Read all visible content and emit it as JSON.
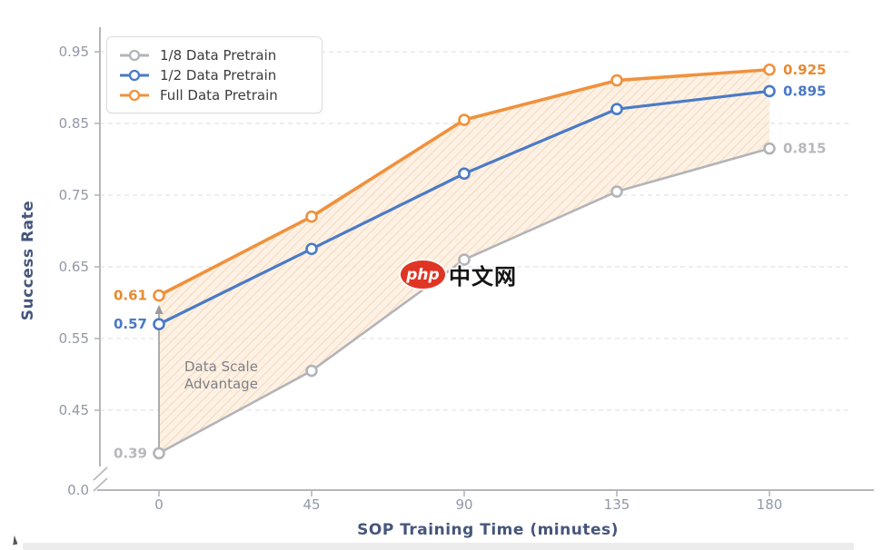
{
  "chart_data": {
    "type": "line",
    "title": "",
    "xlabel": "SOP Training Time (minutes)",
    "ylabel": "Success Rate",
    "x": [
      0,
      45,
      90,
      135,
      180
    ],
    "xtick_labels": [
      "0",
      "45",
      "90",
      "135",
      "180"
    ],
    "ytick_values": [
      0.95,
      0.85,
      0.75,
      0.65,
      0.55,
      0.45
    ],
    "ytick_labels": [
      "0.95",
      "0.85",
      "0.75",
      "0.65",
      "0.55",
      "0.45"
    ],
    "origin_label": "0.0",
    "axis_break": true,
    "grid": "dashed-horizontal",
    "legend_position": "top-left",
    "ylim": [
      0.35,
      0.97
    ],
    "series": [
      {
        "name": "1/8 Data Pretrain",
        "color": "#b3b4b8",
        "values": [
          0.39,
          0.505,
          0.66,
          0.755,
          0.815
        ],
        "first_label": "0.39",
        "last_label": "0.815",
        "label_color": "#b7b7bc"
      },
      {
        "name": "1/2 Data Pretrain",
        "color": "#4a7ac6",
        "values": [
          0.57,
          0.675,
          0.78,
          0.87,
          0.895
        ],
        "first_label": "0.57",
        "last_label": "0.895",
        "label_color": "#4a79c4"
      },
      {
        "name": "Full Data Pretrain",
        "color": "#f0913c",
        "values": [
          0.61,
          0.72,
          0.855,
          0.91,
          0.925
        ],
        "first_label": "0.61",
        "last_label": "0.925",
        "label_color": "#e78a30"
      }
    ],
    "fill_between": {
      "upper_series": "Full Data Pretrain",
      "lower_series": "1/8 Data Pretrain",
      "style": "diagonal-hatch",
      "bg_color": "#fbeddd",
      "hatch_color": "#f1c49a"
    },
    "annotations": {
      "advantage_lines": [
        "Data Scale",
        "Advantage"
      ],
      "advantage_color": "#7f7f85",
      "arrow_color": "#9a9a9e"
    },
    "colors": {
      "grid": "#e4e4e8",
      "spine": "#b6b6ba",
      "tick_label": "#9298a6",
      "axis_title": "#46567c"
    }
  },
  "watermark": {
    "badge": "php",
    "text": "中文网",
    "badge_color": "#e03424"
  }
}
